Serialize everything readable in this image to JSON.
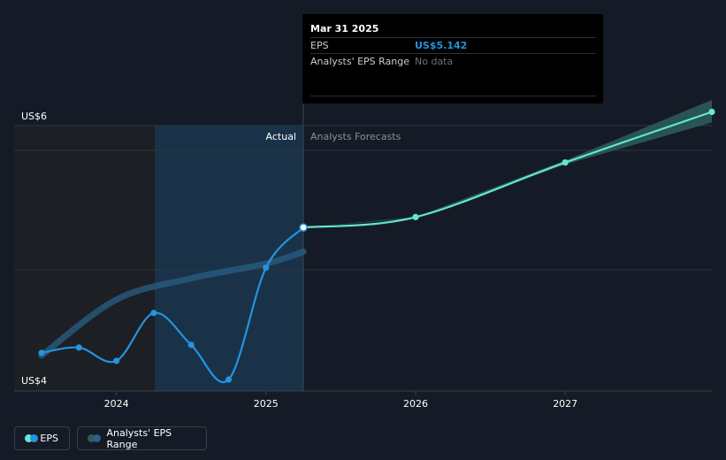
{
  "chart_data": {
    "type": "line",
    "ylabel_top": "US$6",
    "ylabel_bottom": "US$4",
    "ylim": [
      4,
      6
    ],
    "xlim": [
      2023.5,
      2027.98
    ],
    "x_ticks": [
      {
        "value": 2024,
        "label": "2024"
      },
      {
        "value": 2025,
        "label": "2025"
      },
      {
        "value": 2026,
        "label": "2026"
      },
      {
        "value": 2027,
        "label": "2027"
      }
    ],
    "divider_x": 2025.25,
    "highlight_start_x": 2024.25,
    "actual_label": "Actual",
    "forecast_label": "Analysts Forecasts",
    "series": [
      {
        "name": "EPS",
        "color": "#2394df",
        "points": [
          {
            "x": 2023.5,
            "y": 4.2
          },
          {
            "x": 2023.75,
            "y": 4.24
          },
          {
            "x": 2024.0,
            "y": 4.14
          },
          {
            "x": 2024.25,
            "y": 4.5
          },
          {
            "x": 2024.5,
            "y": 4.26
          },
          {
            "x": 2024.75,
            "y": 4.0
          },
          {
            "x": 2025.0,
            "y": 4.84
          },
          {
            "x": 2025.25,
            "y": 5.142
          }
        ]
      },
      {
        "name": "EPS forecast",
        "color": "#63e6d2",
        "points": [
          {
            "x": 2025.25,
            "y": 5.142
          },
          {
            "x": 2026.0,
            "y": 5.22
          },
          {
            "x": 2027.0,
            "y": 5.63
          },
          {
            "x": 2027.98,
            "y": 6.01
          }
        ]
      },
      {
        "name": "Analysts' EPS Range (historical)",
        "color": "#2a5f86",
        "points": [
          {
            "x": 2023.5,
            "y": 4.18
          },
          {
            "x": 2024.0,
            "y": 4.6
          },
          {
            "x": 2024.5,
            "y": 4.76
          },
          {
            "x": 2025.0,
            "y": 4.87
          },
          {
            "x": 2025.25,
            "y": 4.96
          }
        ]
      }
    ],
    "forecast_range": {
      "name": "Analysts' EPS Range",
      "color": "#2b5e5d",
      "upper": [
        {
          "x": 2025.25,
          "y": 5.142
        },
        {
          "x": 2026.0,
          "y": 5.22
        },
        {
          "x": 2027.0,
          "y": 5.645
        },
        {
          "x": 2027.98,
          "y": 6.1
        }
      ],
      "lower": [
        {
          "x": 2025.25,
          "y": 5.142
        },
        {
          "x": 2026.0,
          "y": 5.21
        },
        {
          "x": 2027.0,
          "y": 5.615
        },
        {
          "x": 2027.98,
          "y": 5.93
        }
      ]
    }
  },
  "tooltip": {
    "date": "Mar 31 2025",
    "eps_label": "EPS",
    "eps_value": "US$5.142",
    "range_label": "Analysts' EPS Range",
    "range_value": "No data"
  },
  "legend": {
    "eps_label": "EPS",
    "range_label": "Analysts' EPS Range",
    "eps_colors": [
      "#63e6d2",
      "#2394df"
    ],
    "range_colors": [
      "#2b5e5d",
      "#2a5f86"
    ]
  }
}
